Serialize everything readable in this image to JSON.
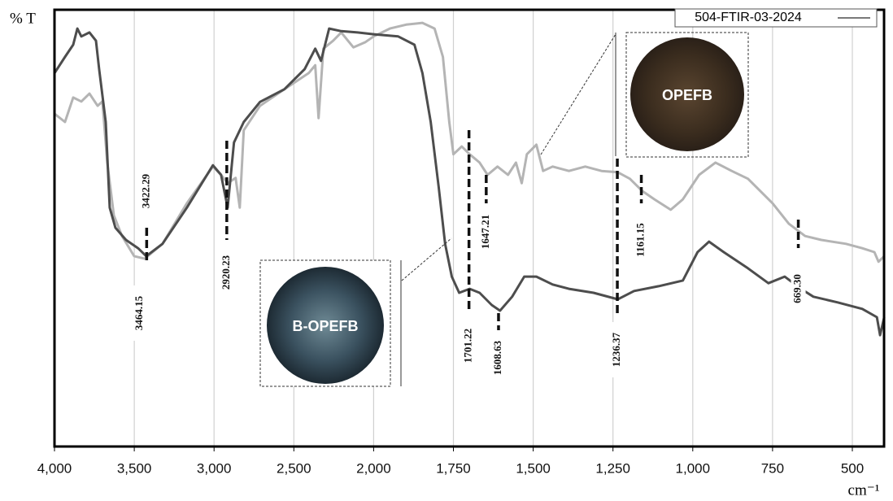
{
  "chart_data": {
    "type": "line",
    "y_label": "% T",
    "x_label": "cm⁻¹",
    "xlim": [
      4000,
      400
    ],
    "ylim": [
      0,
      100
    ],
    "xticks": [
      {
        "value": 4000,
        "label": "4,000"
      },
      {
        "value": 3500,
        "label": "3,500"
      },
      {
        "value": 3000,
        "label": "3,000"
      },
      {
        "value": 2500,
        "label": "2,500"
      },
      {
        "value": 2000,
        "label": "2,000"
      },
      {
        "value": 1750,
        "label": "1,750"
      },
      {
        "value": 1500,
        "label": "1,500"
      },
      {
        "value": 1250,
        "label": "1,250"
      },
      {
        "value": 1000,
        "label": "1,000"
      },
      {
        "value": 750,
        "label": "750"
      },
      500
    ],
    "grid": true,
    "legend": "top-right",
    "series": [
      {
        "color": "#b4b4b4",
        "x": [
          4000,
          3934,
          3883,
          3832,
          3781,
          3730,
          3700,
          3669,
          3628,
          3577,
          3501,
          3435,
          3323,
          3170,
          3007,
          2956,
          2915,
          2865,
          2839,
          2814,
          2712,
          2559,
          2407,
          2366,
          2345,
          2315,
          2254,
          2203,
          2127,
          2051,
          2000,
          1949,
          1898,
          1847,
          1809,
          1783,
          1763,
          1750,
          1724,
          1699,
          1668,
          1643,
          1612,
          1579,
          1554,
          1536,
          1520,
          1490,
          1469,
          1439,
          1388,
          1337,
          1286,
          1235,
          1197,
          1158,
          1120,
          1069,
          1031,
          980,
          929,
          878,
          827,
          750,
          699,
          648,
          597,
          520,
          469,
          431,
          418,
          400
        ],
        "values": [
          76.2,
          74.3,
          79.9,
          79.0,
          80.8,
          78.0,
          79.0,
          65.0,
          52.9,
          48.2,
          43.6,
          43.0,
          46.4,
          55.7,
          64.1,
          62.2,
          60.3,
          61.5,
          54.7,
          72.4,
          78.0,
          81.8,
          85.5,
          87.3,
          75.2,
          91.1,
          92.9,
          94.8,
          91.4,
          92.6,
          93.9,
          95.7,
          96.6,
          97.0,
          95.7,
          89.2,
          74.3,
          66.9,
          68.7,
          66.9,
          65.0,
          62.2,
          64.1,
          62.2,
          65.0,
          60.3,
          66.9,
          69.1,
          63.1,
          64.1,
          63.1,
          64.1,
          63.1,
          62.8,
          61.3,
          58.5,
          56.6,
          54.2,
          56.6,
          62.2,
          65.0,
          63.1,
          61.3,
          55.7,
          51.0,
          48.2,
          47.3,
          46.4,
          45.4,
          44.5,
          42.3,
          43.6
        ]
      },
      {
        "name": "504-FTIR-03-2024",
        "color": "#4d4d4d",
        "x": [
          4000,
          3934,
          3883,
          3857,
          3832,
          3781,
          3740,
          3720,
          3679,
          3654,
          3618,
          3552,
          3476,
          3425,
          3323,
          3170,
          3007,
          2956,
          2915,
          2875,
          2814,
          2712,
          2559,
          2432,
          2366,
          2330,
          2279,
          2203,
          2101,
          2000,
          1923,
          1872,
          1847,
          1821,
          1796,
          1776,
          1755,
          1732,
          1699,
          1668,
          1630,
          1604,
          1566,
          1528,
          1490,
          1439,
          1388,
          1311,
          1235,
          1184,
          1107,
          1031,
          985,
          949,
          903,
          827,
          763,
          712,
          661,
          622,
          546,
          469,
          423,
          413,
          400
        ],
        "values": [
          85.5,
          89.2,
          92.0,
          95.7,
          93.9,
          94.8,
          92.9,
          86.4,
          74.3,
          54.7,
          50.1,
          47.3,
          45.4,
          43.6,
          46.4,
          54.7,
          64.4,
          62.2,
          54.7,
          69.6,
          74.3,
          78.9,
          81.8,
          86.4,
          91.1,
          88.3,
          95.7,
          95.1,
          94.8,
          94.4,
          93.9,
          92.0,
          85.5,
          74.3,
          59.4,
          46.4,
          38.9,
          35.2,
          36.1,
          35.2,
          32.4,
          31.1,
          34.3,
          38.9,
          38.9,
          37.1,
          36.1,
          35.2,
          33.7,
          35.6,
          36.7,
          38.0,
          44.5,
          46.9,
          44.5,
          40.8,
          37.4,
          38.9,
          36.1,
          34.3,
          33.0,
          31.5,
          29.6,
          25.5,
          29.6
        ]
      }
    ],
    "peak_labels": [
      3464.15,
      3422.29,
      2920.23,
      1701.22,
      1647.21,
      1608.63,
      1236.37,
      1161.15,
      {
        "value": 669.3,
        "label": "669.30"
      }
    ],
    "images": [
      {
        "label": "OPEFB"
      },
      {
        "label": "B-OPEFB"
      }
    ]
  }
}
